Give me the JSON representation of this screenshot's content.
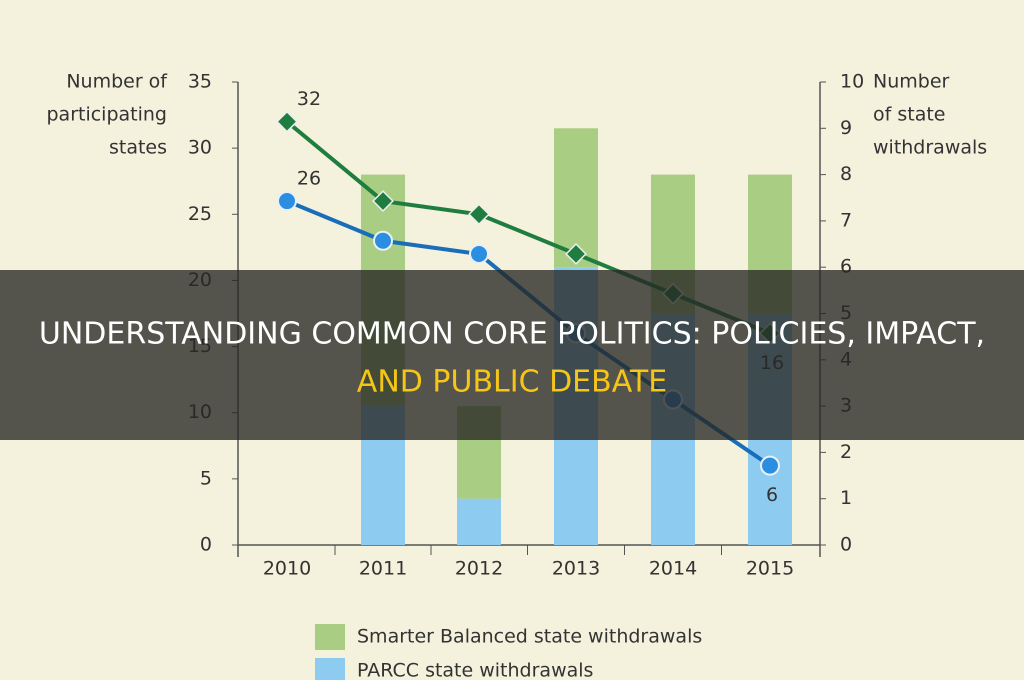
{
  "chart_data": {
    "type": "bar",
    "y_label": [
      "Number of",
      "participating",
      "states"
    ],
    "y2_label": [
      "Number",
      "of state",
      "withdrawals"
    ],
    "categories": [
      "2010",
      "2011",
      "2012",
      "2013",
      "2014",
      "2015"
    ],
    "ylim": [
      0,
      35
    ],
    "yticks": [
      0,
      5,
      10,
      15,
      20,
      25,
      30,
      35
    ],
    "y2lim": [
      0,
      10
    ],
    "y2ticks": [
      0,
      1,
      2,
      3,
      4,
      5,
      6,
      7,
      8,
      9,
      10
    ],
    "stacked": true,
    "series": [
      {
        "name": "PARCC state withdrawals",
        "color": "#8ecbf0",
        "axis": "y2",
        "values": [
          0,
          3,
          1,
          6,
          5,
          5
        ]
      },
      {
        "name": "Smarter Balanced state withdrawals",
        "color": "#a9cd82",
        "axis": "y2",
        "values": [
          0,
          5,
          2,
          3,
          3,
          3
        ]
      },
      {
        "type": "line",
        "color": "#1e7d3f",
        "marker": "diamond",
        "values": [
          32,
          26,
          25,
          22,
          19,
          16
        ],
        "value_labels": [
          32,
          null,
          null,
          null,
          null,
          16
        ]
      },
      {
        "type": "line",
        "color": "#1a6db8",
        "marker": "circle",
        "values": [
          26,
          23,
          22,
          16,
          11,
          6
        ],
        "value_labels": [
          26,
          null,
          null,
          null,
          null,
          6
        ]
      }
    ]
  },
  "overlay": {
    "line1": "UNDERSTANDING COMMON CORE POLITICS: POLICIES, IMPACT,",
    "line2": "AND PUBLIC DEBATE"
  }
}
